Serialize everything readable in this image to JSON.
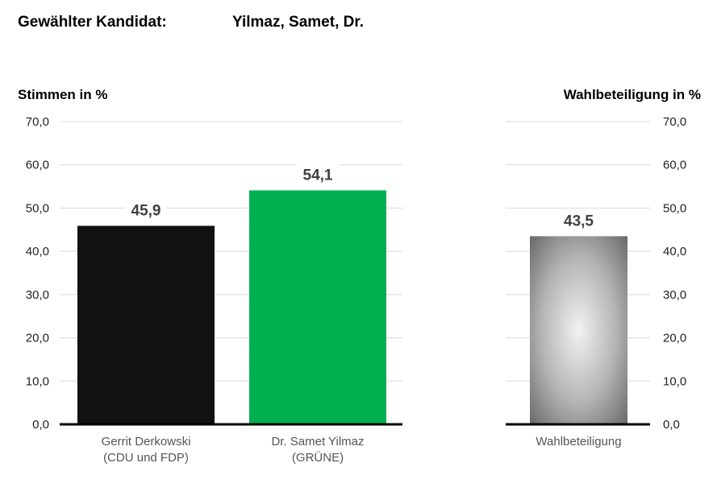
{
  "header": {
    "label": "Gewählter Kandidat:",
    "value": "Yilmaz, Samet, Dr."
  },
  "chart_data": [
    {
      "type": "bar",
      "title": "",
      "ylabel": "Stimmen in %",
      "ylim": [
        0,
        70
      ],
      "ticks": [
        "0,0",
        "10,0",
        "20,0",
        "30,0",
        "40,0",
        "50,0",
        "60,0",
        "70,0"
      ],
      "categories": [
        [
          "Gerrit Derkowski",
          "(CDU und FDP)"
        ],
        [
          "Dr. Samet Yilmaz",
          "(GRÜNE)"
        ]
      ],
      "values": [
        45.9,
        54.1
      ],
      "value_labels": [
        "45,9",
        "54,1"
      ],
      "colors": [
        "#111111",
        "#00b050"
      ],
      "grid": true
    },
    {
      "type": "bar",
      "title": "",
      "ylabel": "Wahlbeteiligung in %",
      "ylim": [
        0,
        70
      ],
      "ticks": [
        "0,0",
        "10,0",
        "20,0",
        "30,0",
        "40,0",
        "50,0",
        "60,0",
        "70,0"
      ],
      "categories": [
        [
          "Wahlbeteiligung"
        ]
      ],
      "values": [
        43.5
      ],
      "value_labels": [
        "43,5"
      ],
      "colors": [
        "gray-radial-gradient"
      ],
      "grid": true
    }
  ]
}
